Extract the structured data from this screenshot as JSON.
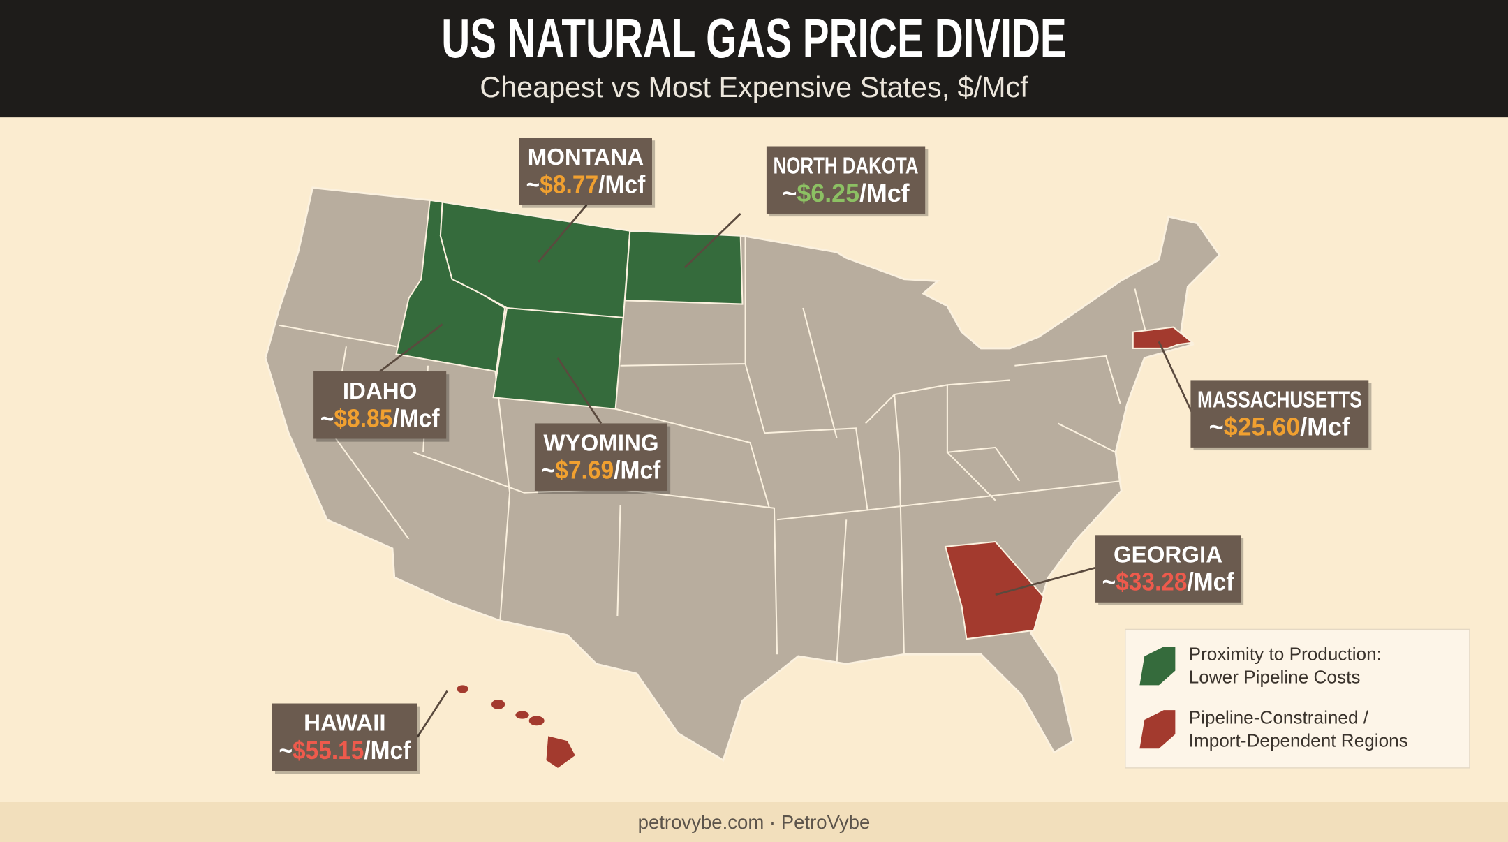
{
  "header": {
    "title": "US NATURAL GAS PRICE DIVIDE",
    "subtitle": "Cheapest vs Most Expensive States, $/Mcf"
  },
  "states": [
    {
      "name": "MONTANA",
      "prefix": "~",
      "price": "$8.77",
      "unit": "/Mcf",
      "price_color": "#f0a030",
      "group": "low"
    },
    {
      "name": "NORTH DAKOTA",
      "prefix": "~",
      "price": "$6.25",
      "unit": "/Mcf",
      "price_color": "#8cc063",
      "group": "low"
    },
    {
      "name": "IDAHO",
      "prefix": "~",
      "price": "$8.85",
      "unit": "/Mcf",
      "price_color": "#f0a030",
      "group": "low"
    },
    {
      "name": "WYOMING",
      "prefix": "~",
      "price": "$7.69",
      "unit": "/Mcf",
      "price_color": "#f0a030",
      "group": "low"
    },
    {
      "name": "MASSACHUSETTS",
      "prefix": "~",
      "price": "$25.60",
      "unit": "/Mcf",
      "price_color": "#f0a030",
      "group": "high"
    },
    {
      "name": "GEORGIA",
      "prefix": "~",
      "price": "$33.28",
      "unit": "/Mcf",
      "price_color": "#ee5a4c",
      "group": "high"
    },
    {
      "name": "HAWAII",
      "prefix": "~",
      "price": "$55.15",
      "unit": "/Mcf",
      "price_color": "#ee5a4c",
      "group": "high"
    }
  ],
  "legend": [
    {
      "lines": [
        "Proximity to Production:",
        "Lower Pipeline Costs"
      ],
      "color": "#356b3c"
    },
    {
      "lines": [
        "Pipeline-Constrained /",
        "Import-Dependent Regions"
      ],
      "color": "#a33a2e"
    }
  ],
  "footer": "petrovybe.com · PetroVybe"
}
